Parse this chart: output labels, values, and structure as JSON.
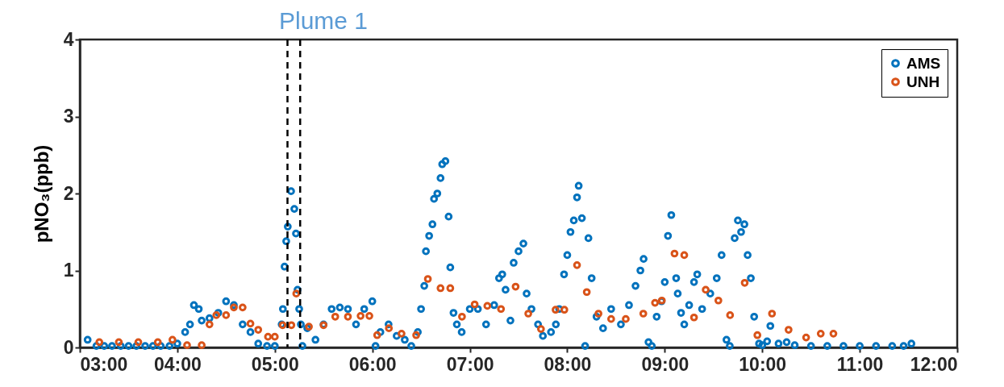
{
  "chart_data": {
    "type": "scatter",
    "ylabel": "pNO₃(ppb)",
    "xlim": [
      3,
      12
    ],
    "xticks": [
      {
        "value": 3,
        "label": "03:00"
      },
      {
        "value": 4,
        "label": "04:00"
      },
      {
        "value": 5,
        "label": "05:00"
      },
      {
        "value": 6,
        "label": "06:00"
      },
      {
        "value": 7,
        "label": "07:00"
      },
      {
        "value": 8,
        "label": "08:00"
      },
      {
        "value": 9,
        "label": "09:00"
      },
      {
        "value": 10,
        "label": "10:00"
      },
      {
        "value": 11,
        "label": "11:00"
      },
      {
        "value": 12,
        "label": "12:00"
      }
    ],
    "ylim": [
      0,
      4
    ],
    "yticks": [
      0,
      1,
      2,
      3,
      4
    ],
    "grid": false,
    "legend": "top right",
    "marker": "circle",
    "series": [
      {
        "name": "AMS",
        "color": "#0072bd",
        "x": [
          3.08,
          3.17,
          3.25,
          3.33,
          3.42,
          3.5,
          3.58,
          3.67,
          3.75,
          3.83,
          3.92,
          4.0,
          4.08,
          4.13,
          4.17,
          4.22,
          4.25,
          4.33,
          4.42,
          4.5,
          4.58,
          4.67,
          4.75,
          4.83,
          4.92,
          5.0,
          5.07,
          5.083,
          5.1,
          5.117,
          5.133,
          5.167,
          5.2,
          5.217,
          5.233,
          5.25,
          5.267,
          5.283,
          5.333,
          5.417,
          5.5,
          5.583,
          5.667,
          5.75,
          5.833,
          5.917,
          6.0,
          6.033,
          6.083,
          6.167,
          6.25,
          6.333,
          6.4,
          6.467,
          6.5,
          6.533,
          6.55,
          6.583,
          6.617,
          6.633,
          6.667,
          6.7,
          6.717,
          6.75,
          6.783,
          6.8,
          6.833,
          6.867,
          6.917,
          7.0,
          7.083,
          7.167,
          7.25,
          7.3,
          7.333,
          7.367,
          7.417,
          7.45,
          7.5,
          7.55,
          7.583,
          7.633,
          7.7,
          7.75,
          7.833,
          7.883,
          7.917,
          7.967,
          8.0,
          8.033,
          8.067,
          8.1,
          8.117,
          8.15,
          8.183,
          8.217,
          8.25,
          8.3,
          8.367,
          8.45,
          8.55,
          8.633,
          8.7,
          8.75,
          8.783,
          8.833,
          8.867,
          8.917,
          8.967,
          9.0,
          9.033,
          9.067,
          9.117,
          9.133,
          9.167,
          9.2,
          9.25,
          9.3,
          9.333,
          9.383,
          9.467,
          9.533,
          9.583,
          9.633,
          9.667,
          9.717,
          9.75,
          9.783,
          9.817,
          9.85,
          9.883,
          9.917,
          9.967,
          10.0,
          10.05,
          10.083,
          10.167,
          10.25,
          10.333,
          10.5,
          10.667,
          10.833,
          11.0,
          11.167,
          11.333,
          11.45,
          11.53
        ],
        "values": [
          0.1,
          0.02,
          0.02,
          0.02,
          0.02,
          0.02,
          0.02,
          0.02,
          0.02,
          0.02,
          0.02,
          0.05,
          0.2,
          0.3,
          0.55,
          0.5,
          0.35,
          0.38,
          0.45,
          0.6,
          0.55,
          0.3,
          0.2,
          0.05,
          0.02,
          0.02,
          0.3,
          0.5,
          1.05,
          1.38,
          1.57,
          2.03,
          1.8,
          1.48,
          0.75,
          0.5,
          0.3,
          0.02,
          0.25,
          0.1,
          0.3,
          0.5,
          0.52,
          0.5,
          0.3,
          0.5,
          0.6,
          0.02,
          0.2,
          0.3,
          0.15,
          0.1,
          0.02,
          0.2,
          0.5,
          0.8,
          1.25,
          1.45,
          1.6,
          1.93,
          2.0,
          2.2,
          2.38,
          2.42,
          1.7,
          1.04,
          0.45,
          0.3,
          0.2,
          0.5,
          0.5,
          0.3,
          0.55,
          0.9,
          0.95,
          0.75,
          0.35,
          1.1,
          1.25,
          1.35,
          0.7,
          0.5,
          0.3,
          0.15,
          0.2,
          0.3,
          0.5,
          0.95,
          1.2,
          1.5,
          1.65,
          1.95,
          2.1,
          1.68,
          0.02,
          1.42,
          0.9,
          0.4,
          0.25,
          0.5,
          0.3,
          0.55,
          0.8,
          1.0,
          1.15,
          0.07,
          0.02,
          0.4,
          0.6,
          0.85,
          1.45,
          1.72,
          0.9,
          0.7,
          0.45,
          0.3,
          0.55,
          0.85,
          0.95,
          0.5,
          0.7,
          0.9,
          1.2,
          0.1,
          0.02,
          1.42,
          1.65,
          1.5,
          1.6,
          1.2,
          0.9,
          0.4,
          0.05,
          0.03,
          0.08,
          0.28,
          0.05,
          0.07,
          0.03,
          0.02,
          0.02,
          0.02,
          0.02,
          0.02,
          0.02,
          0.02,
          0.05
        ]
      },
      {
        "name": "UNH",
        "color": "#d95319",
        "x": [
          3.2,
          3.4,
          3.6,
          3.8,
          3.95,
          4.1,
          4.25,
          4.33,
          4.4,
          4.5,
          4.58,
          4.67,
          4.75,
          4.83,
          4.93,
          5.0,
          5.08,
          5.17,
          5.22,
          5.35,
          5.5,
          5.62,
          5.75,
          5.88,
          5.97,
          6.05,
          6.17,
          6.3,
          6.45,
          6.57,
          6.7,
          6.8,
          6.92,
          7.05,
          7.18,
          7.32,
          7.47,
          7.6,
          7.73,
          7.88,
          7.97,
          8.1,
          8.2,
          8.32,
          8.45,
          8.6,
          8.78,
          8.9,
          8.97,
          9.1,
          9.2,
          9.3,
          9.42,
          9.55,
          9.67,
          9.82,
          9.95,
          10.1,
          10.27,
          10.45,
          10.6,
          10.73
        ],
        "values": [
          0.07,
          0.07,
          0.07,
          0.07,
          0.1,
          0.03,
          0.03,
          0.3,
          0.42,
          0.42,
          0.52,
          0.52,
          0.31,
          0.23,
          0.14,
          0.14,
          0.29,
          0.29,
          0.7,
          0.27,
          0.29,
          0.4,
          0.4,
          0.41,
          0.41,
          0.16,
          0.25,
          0.18,
          0.16,
          0.89,
          0.77,
          0.77,
          0.4,
          0.56,
          0.54,
          0.5,
          0.79,
          0.44,
          0.24,
          0.49,
          0.49,
          1.07,
          0.72,
          0.44,
          0.37,
          0.37,
          0.44,
          0.58,
          0.61,
          1.22,
          1.2,
          0.39,
          0.75,
          0.61,
          0.42,
          0.84,
          0.16,
          0.44,
          0.23,
          0.13,
          0.18,
          0.18
        ]
      }
    ],
    "ref_lines": [
      {
        "axis": "x",
        "value": 5.13,
        "color": "#000000",
        "line_style": "dashed"
      },
      {
        "axis": "x",
        "value": 5.26,
        "color": "#000000",
        "line_style": "dashed"
      }
    ],
    "annotations": [
      "Plume 1"
    ]
  }
}
